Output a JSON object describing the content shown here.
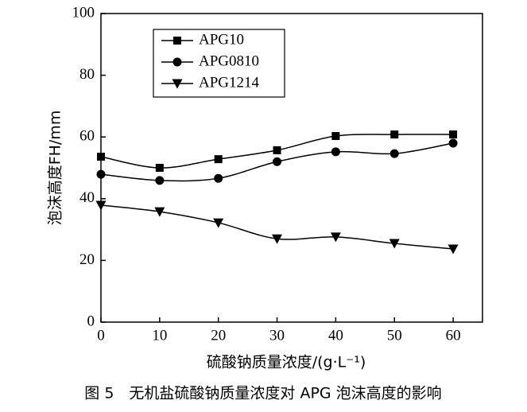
{
  "chart_data": {
    "type": "line",
    "y_label": "泡沫高度FH/mm",
    "x_label": "硫酸钠质量浓度/(g·L⁻¹)",
    "caption": "图 5　无机盐硫酸钠质量浓度对 APG 泡沫高度的影响",
    "x": [
      0,
      10,
      20,
      30,
      40,
      50,
      60
    ],
    "series": [
      {
        "name": "APG10",
        "color": "#000000",
        "marker": "square",
        "values": [
          53.6,
          50,
          52.8,
          55.7,
          60.3,
          60.8,
          60.8
        ]
      },
      {
        "name": "APG0810",
        "color": "#000000",
        "marker": "circle",
        "values": [
          47.9,
          45.9,
          46.6,
          52,
          55.2,
          54.6,
          58
        ]
      },
      {
        "name": "APG1214",
        "color": "#000000",
        "marker": "triangle-down",
        "values": [
          37.9,
          35.8,
          32.2,
          27,
          27.6,
          25.5,
          23.7
        ]
      }
    ],
    "xlim": [
      0,
      65
    ],
    "xticks": [
      0,
      10,
      20,
      30,
      40,
      50,
      60
    ],
    "ylim": [
      0,
      100
    ],
    "yticks": [
      0,
      20,
      40,
      60,
      80,
      100
    ]
  }
}
